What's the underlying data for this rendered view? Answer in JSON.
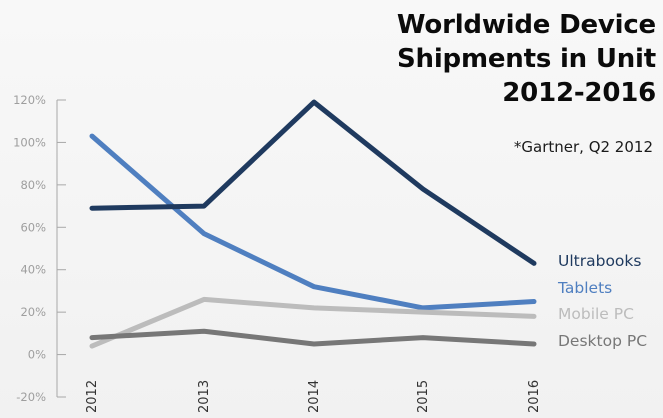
{
  "chart_data": {
    "type": "line",
    "title": "Worldwide Device\nShipments in Unit\n2012-2016",
    "source": "*Gartner, Q2 2012",
    "xlabel": "",
    "ylabel": "",
    "x": [
      "2012",
      "2013",
      "2014",
      "2015",
      "2016"
    ],
    "ylim": [
      -20,
      120
    ],
    "yticks": [
      "-20%",
      "0%",
      "20%",
      "40%",
      "60%",
      "80%",
      "100%",
      "120%"
    ],
    "grid": false,
    "legend_placement": "right",
    "series": [
      {
        "name": "Ultrabooks",
        "color": "#1f3a5f",
        "values": [
          69,
          70,
          119,
          78,
          43
        ]
      },
      {
        "name": "Tablets",
        "color": "#4f7fc0",
        "values": [
          103,
          57,
          32,
          22,
          25
        ]
      },
      {
        "name": "Mobile PC",
        "color": "#bcbcbc",
        "values": [
          4,
          26,
          22,
          20,
          18
        ]
      },
      {
        "name": "Desktop PC",
        "color": "#777777",
        "values": [
          8,
          11,
          5,
          8,
          5
        ]
      }
    ]
  }
}
